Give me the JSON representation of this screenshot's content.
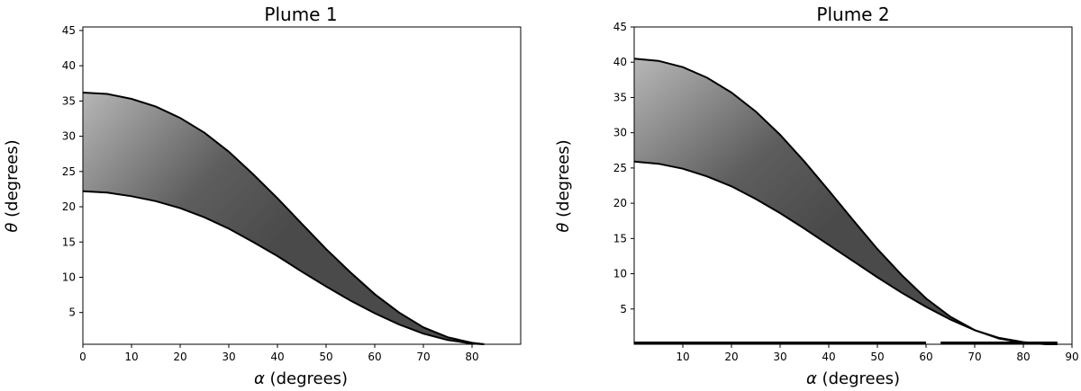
{
  "chart_data": [
    {
      "type": "area",
      "title": "Plume 1",
      "xlabel_sym": "α",
      "xlabel": "(degrees)",
      "ylabel_sym": "θ",
      "ylabel": "(degrees)",
      "xlim": [
        0,
        90
      ],
      "ylim": [
        0.5,
        45.5
      ],
      "xticks": [
        0,
        10,
        20,
        30,
        40,
        50,
        60,
        70,
        80
      ],
      "yticks": [
        5,
        10,
        15,
        20,
        25,
        30,
        35,
        40,
        45
      ],
      "grid": false,
      "fill": "gray-gradient",
      "series": [
        {
          "role": "upper",
          "x": [
            0,
            5,
            10,
            15,
            20,
            25,
            30,
            35,
            40,
            45,
            50,
            55,
            60,
            65,
            70,
            75,
            80,
            82.5
          ],
          "y": [
            36.2,
            36.0,
            35.3,
            34.2,
            32.6,
            30.5,
            27.8,
            24.6,
            21.2,
            17.6,
            14.0,
            10.7,
            7.6,
            5.0,
            2.9,
            1.5,
            0.7,
            0.5
          ]
        },
        {
          "role": "lower",
          "x": [
            0,
            5,
            10,
            15,
            20,
            25,
            30,
            35,
            40,
            45,
            50,
            55,
            60,
            65,
            70,
            75,
            80,
            82.5
          ],
          "y": [
            22.2,
            22.0,
            21.5,
            20.8,
            19.8,
            18.5,
            16.9,
            15.0,
            13.0,
            10.8,
            8.7,
            6.7,
            4.9,
            3.3,
            2.0,
            1.1,
            0.6,
            0.5
          ]
        }
      ]
    },
    {
      "type": "area",
      "title": "Plume 2",
      "xlabel_sym": "α",
      "xlabel": "(degrees)",
      "ylabel_sym": "θ",
      "ylabel": "(degrees)",
      "xlim": [
        0,
        90
      ],
      "ylim": [
        0,
        45
      ],
      "xticks": [
        10,
        20,
        30,
        40,
        50,
        60,
        70,
        80,
        90
      ],
      "yticks": [
        5,
        10,
        15,
        20,
        25,
        30,
        35,
        40,
        45
      ],
      "grid": false,
      "fill": "gray-gradient",
      "baseline_segments": [
        [
          0,
          60
        ],
        [
          63,
          87
        ]
      ],
      "series": [
        {
          "role": "upper",
          "x": [
            0,
            5,
            10,
            15,
            20,
            25,
            30,
            35,
            40,
            45,
            50,
            55,
            60,
            65,
            70,
            75,
            80,
            85,
            87
          ],
          "y": [
            40.5,
            40.2,
            39.3,
            37.8,
            35.7,
            33.0,
            29.7,
            25.9,
            21.8,
            17.6,
            13.5,
            9.8,
            6.5,
            3.9,
            2.0,
            0.8,
            0.2,
            0.0,
            0.0
          ]
        },
        {
          "role": "lower",
          "x": [
            0,
            5,
            10,
            15,
            20,
            25,
            30,
            35,
            40,
            45,
            50,
            55,
            60,
            65,
            70,
            75,
            80,
            85,
            87
          ],
          "y": [
            25.9,
            25.6,
            24.9,
            23.8,
            22.4,
            20.6,
            18.6,
            16.4,
            14.1,
            11.8,
            9.5,
            7.3,
            5.3,
            3.5,
            2.0,
            0.9,
            0.3,
            0.0,
            0.0
          ]
        }
      ]
    }
  ]
}
